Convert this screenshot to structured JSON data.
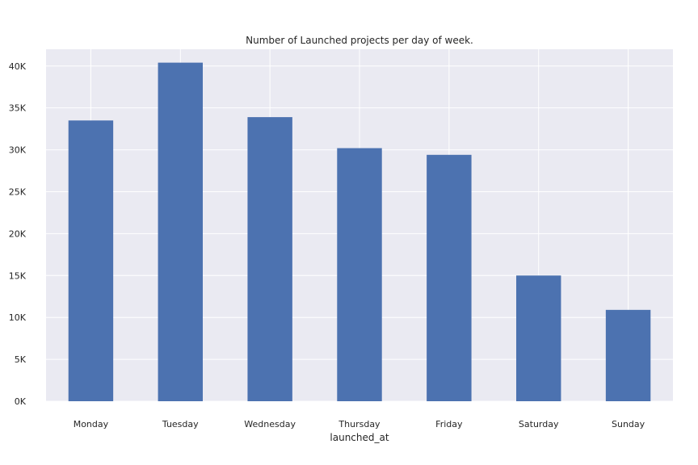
{
  "chart_data": {
    "type": "bar",
    "title": "Number of Launched projects per day of week.",
    "xlabel": "launched_at",
    "ylabel": "",
    "categories": [
      "Monday",
      "Tuesday",
      "Wednesday",
      "Thursday",
      "Friday",
      "Saturday",
      "Sunday"
    ],
    "values": [
      33500,
      40400,
      33900,
      30200,
      29400,
      15000,
      10900
    ],
    "ylim": [
      0,
      42000
    ],
    "yticks": [
      0,
      5000,
      10000,
      15000,
      20000,
      25000,
      30000,
      35000,
      40000
    ],
    "ytick_labels": [
      "0K",
      "5K",
      "10K",
      "15K",
      "20K",
      "25K",
      "30K",
      "35K",
      "40K"
    ],
    "grid": true,
    "colors": {
      "bar": "#4c72b0",
      "plot_background": "#eaeaf2",
      "grid": "#ffffff"
    }
  }
}
